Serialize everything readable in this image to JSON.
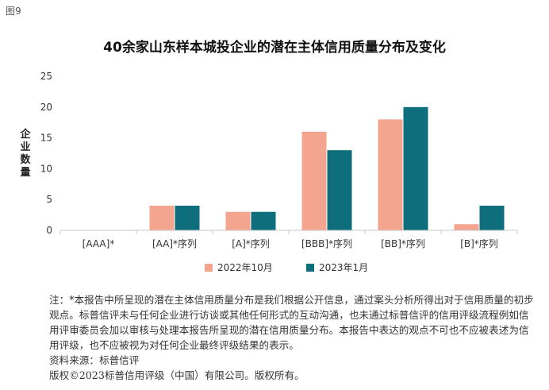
{
  "figure_label": "图9",
  "chart_data": {
    "type": "bar",
    "title": "40余家山东样本城投企业的潜在主体信用质量分布及变化",
    "ylabel": "企业数量",
    "xlabel": "",
    "ylim": [
      0,
      25
    ],
    "yticks": [
      0,
      5,
      10,
      15,
      20,
      25
    ],
    "grid": false,
    "legend_position": "bottom",
    "categories": [
      "[AAA]*",
      "[AA]*序列",
      "[A]*序列",
      "[BBB]*序列",
      "[BB]*序列",
      "[B]*序列"
    ],
    "series": [
      {
        "name": "2022年10月",
        "color": "#f4a48f",
        "values": [
          0,
          4,
          3,
          16,
          18,
          1
        ]
      },
      {
        "name": "2023年1月",
        "color": "#0e6e7c",
        "values": [
          0,
          4,
          3,
          13,
          20,
          4
        ]
      }
    ]
  },
  "notes": [
    "注：*本报告中所呈现的潜在主体信用质量分布是我们根据公开信息，通过案头分析所得出对于信用质量的初步观点。标普信评未与任何企业进行访谈或其他任何形式的互动沟通，也未通过标普信评的信用评级流程例如信用评审委员会加以审核与处理本报告所呈现的潜在信用质量分布。本报告中表达的观点不可也不应被表述为信用评级，也不应被视为对任何企业最终评级结果的表示。",
    "资料来源：标普信评",
    "版权©2023标普信用评级（中国）有限公司。版权所有。"
  ]
}
